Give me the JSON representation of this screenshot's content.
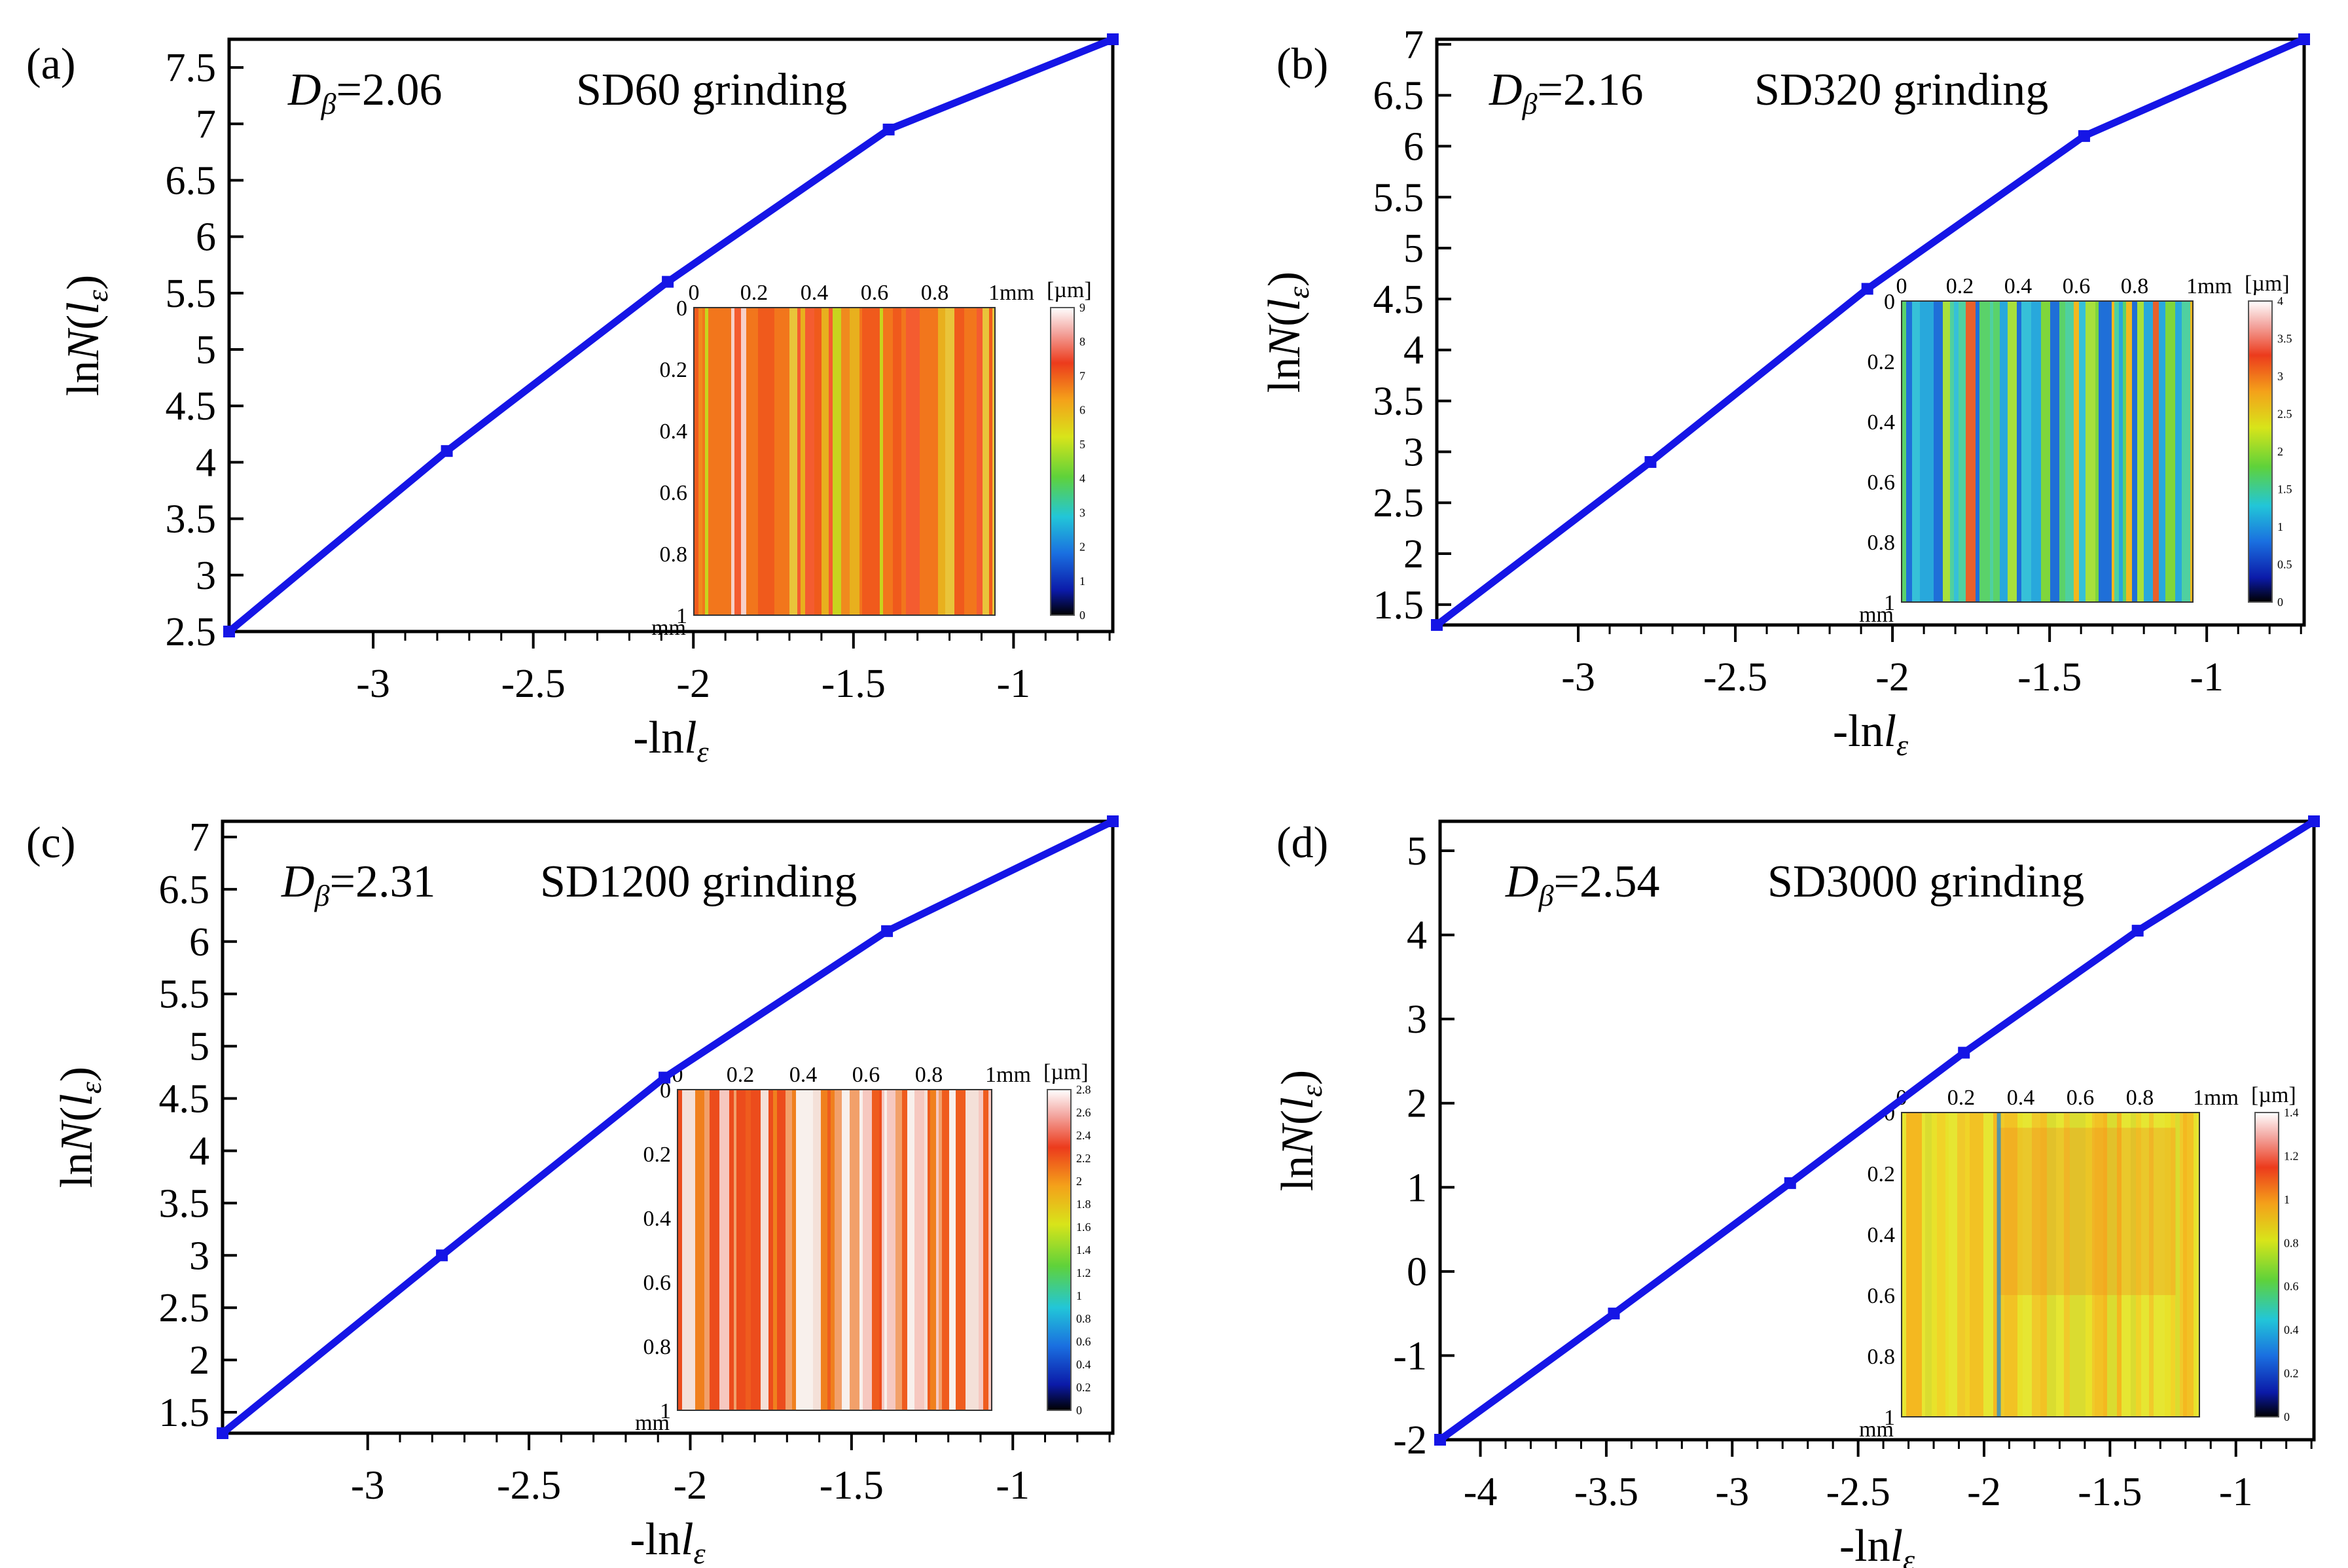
{
  "figure": {
    "description_free": true
  },
  "chart_data": [
    {
      "type": "line",
      "label": "(a)",
      "dimension_label": "Dβ=2.06",
      "dimension_value": "2.06",
      "process": "SD60 grinding",
      "xlabel": "-lnlε",
      "ylabel": "lnN(lε)",
      "xlim": [
        -3.45,
        -0.69
      ],
      "ylim": [
        2.5,
        7.75
      ],
      "xticks": [
        "-3",
        "-2.5",
        "-2",
        "-1.5",
        "-1"
      ],
      "xtick_values": [
        -3,
        -2.5,
        -2,
        -1.5,
        -1
      ],
      "yticks": [
        "2.5",
        "3",
        "3.5",
        "4",
        "4.5",
        "5",
        "5.5",
        "6",
        "6.5",
        "7",
        "7.5"
      ],
      "ytick_values": [
        2.5,
        3,
        3.5,
        4,
        4.5,
        5,
        5.5,
        6,
        6.5,
        7,
        7.5
      ],
      "x": [
        -3.45,
        -2.77,
        -2.08,
        -1.39,
        -0.69
      ],
      "y": [
        2.5,
        4.1,
        5.6,
        6.95,
        7.75
      ],
      "inset": {
        "x_ticks": [
          "0",
          "0.2",
          "0.4",
          "0.6",
          "0.8",
          "1mm"
        ],
        "y_ticks": [
          "0",
          "0.2",
          "0.4",
          "0.6",
          "0.8",
          "1"
        ],
        "y_unit": "mm",
        "colorbar_unit": "[µm]",
        "colorbar_ticks": [
          "0",
          "1",
          "2",
          "3",
          "4",
          "5",
          "6",
          "7",
          "8",
          "9"
        ],
        "surface_style": "orange"
      }
    },
    {
      "type": "line",
      "label": "(b)",
      "dimension_label": "Dβ=2.16",
      "dimension_value": "2.16",
      "process": "SD320 grinding",
      "xlabel": "-lnlε",
      "ylabel": "lnN(lε)",
      "xlim": [
        -3.45,
        -0.69
      ],
      "ylim": [
        1.3,
        7.05
      ],
      "xticks": [
        "-3",
        "-2.5",
        "-2",
        "-1.5",
        "-1"
      ],
      "xtick_values": [
        -3,
        -2.5,
        -2,
        -1.5,
        -1
      ],
      "yticks": [
        "1.5",
        "2",
        "2.5",
        "3",
        "3.5",
        "4",
        "4.5",
        "5",
        "5.5",
        "6",
        "6.5",
        "7"
      ],
      "ytick_values": [
        1.5,
        2,
        2.5,
        3,
        3.5,
        4,
        4.5,
        5,
        5.5,
        6,
        6.5,
        7
      ],
      "x": [
        -3.45,
        -2.77,
        -2.08,
        -1.39,
        -0.69
      ],
      "y": [
        1.3,
        2.9,
        4.6,
        6.1,
        7.05
      ],
      "inset": {
        "x_ticks": [
          "0",
          "0.2",
          "0.4",
          "0.6",
          "0.8",
          "1mm"
        ],
        "y_ticks": [
          "0",
          "0.2",
          "0.4",
          "0.6",
          "0.8",
          "1"
        ],
        "y_unit": "mm",
        "colorbar_unit": "[µm]",
        "colorbar_ticks": [
          "0",
          "0.5",
          "1",
          "1.5",
          "2",
          "2.5",
          "3",
          "3.5",
          "4"
        ],
        "surface_style": "green"
      }
    },
    {
      "type": "line",
      "label": "(c)",
      "dimension_label": "Dβ=2.31",
      "dimension_value": "2.31",
      "process": "SD1200 grinding",
      "xlabel": "-lnlε",
      "ylabel": "lnN(lε)",
      "xlim": [
        -3.45,
        -0.69
      ],
      "ylim": [
        1.3,
        7.15
      ],
      "xticks": [
        "-3",
        "-2.5",
        "-2",
        "-1.5",
        "-1"
      ],
      "xtick_values": [
        -3,
        -2.5,
        -2,
        -1.5,
        -1
      ],
      "yticks": [
        "1.5",
        "2",
        "2.5",
        "3",
        "3.5",
        "4",
        "4.5",
        "5",
        "5.5",
        "6",
        "6.5",
        "7"
      ],
      "ytick_values": [
        1.5,
        2,
        2.5,
        3,
        3.5,
        4,
        4.5,
        5,
        5.5,
        6,
        6.5,
        7
      ],
      "x": [
        -3.45,
        -2.77,
        -2.08,
        -1.39,
        -0.69
      ],
      "y": [
        1.3,
        3.0,
        4.7,
        6.1,
        7.15
      ],
      "inset": {
        "x_ticks": [
          "0",
          "0.2",
          "0.4",
          "0.6",
          "0.8",
          "1mm"
        ],
        "y_ticks": [
          "0",
          "0.2",
          "0.4",
          "0.6",
          "0.8",
          "1"
        ],
        "y_unit": "mm",
        "colorbar_unit": "[µm]",
        "colorbar_ticks": [
          "0",
          "0.2",
          "0.4",
          "0.6",
          "0.8",
          "1",
          "1.2",
          "1.4",
          "1.6",
          "1.8",
          "2",
          "2.2",
          "2.4",
          "2.6",
          "2.8"
        ],
        "surface_style": "fine-orange"
      }
    },
    {
      "type": "line",
      "label": "(d)",
      "dimension_label": "Dβ=2.54",
      "dimension_value": "2.54",
      "process": "SD3000 grinding",
      "xlabel": "-lnlε",
      "ylabel": "lnN(lε)",
      "xlim": [
        -4.16,
        -0.69
      ],
      "ylim": [
        -2.0,
        5.35
      ],
      "xticks": [
        "-4",
        "-3.5",
        "-3",
        "-2.5",
        "-2",
        "-1.5",
        "-1"
      ],
      "xtick_values": [
        -4,
        -3.5,
        -3,
        -2.5,
        -2,
        -1.5,
        -1
      ],
      "yticks": [
        "-2",
        "-1",
        "0",
        "1",
        "2",
        "3",
        "4",
        "5"
      ],
      "ytick_values": [
        -2,
        -1,
        0,
        1,
        2,
        3,
        4,
        5
      ],
      "x": [
        -4.16,
        -3.47,
        -2.77,
        -2.08,
        -1.39,
        -0.69
      ],
      "y": [
        -2.0,
        -0.5,
        1.05,
        2.6,
        4.05,
        5.35
      ],
      "inset": {
        "x_ticks": [
          "0",
          "0.2",
          "0.4",
          "0.6",
          "0.8",
          "1mm"
        ],
        "y_ticks": [
          "0",
          "0.2",
          "0.4",
          "0.6",
          "0.8",
          "1"
        ],
        "y_unit": "mm",
        "colorbar_unit": "[µm]",
        "colorbar_ticks": [
          "0",
          "0.2",
          "0.4",
          "0.6",
          "0.8",
          "1",
          "1.2",
          "1.4"
        ],
        "surface_style": "yellow"
      }
    }
  ]
}
